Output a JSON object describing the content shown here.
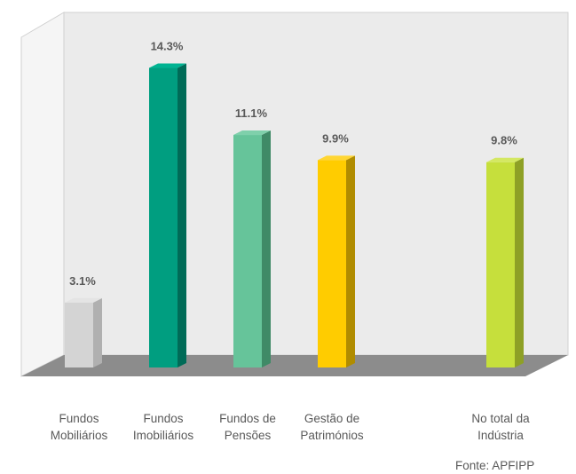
{
  "chart_data": {
    "type": "bar",
    "categories": [
      "Fundos Mobiliários",
      "Fundos Imobiliários",
      "Fundos de Pensões",
      "Gestão de Patrimónios",
      "No total da Indústria"
    ],
    "category_lines": [
      [
        "Fundos",
        "Mobiliários"
      ],
      [
        "Fundos",
        "Imobiliários"
      ],
      [
        "Fundos de",
        "Pensões"
      ],
      [
        "Gestão de",
        "Patrimónios"
      ],
      [
        "No total da",
        "Indústria"
      ]
    ],
    "values": [
      3.1,
      14.3,
      11.1,
      9.9,
      9.8
    ],
    "value_labels": [
      "3.1%",
      "14.3%",
      "11.1%",
      "9.9%",
      "9.8%"
    ],
    "ylim": [
      0,
      15
    ],
    "grid": false,
    "legend": "none",
    "title": "",
    "xlabel": "",
    "ylabel": "",
    "colors": [
      {
        "front": "#d4d4d4",
        "side": "#b0b0b0",
        "top": "#e4e4e4"
      },
      {
        "front": "#009e80",
        "side": "#006b57",
        "top": "#00b392"
      },
      {
        "front": "#66c49a",
        "side": "#3f8a67",
        "top": "#7fd0ab"
      },
      {
        "front": "#ffcc00",
        "side": "#b08c00",
        "top": "#ffd633"
      },
      {
        "front": "#c6df3c",
        "side": "#8ea026",
        "top": "#d4e862"
      }
    ]
  },
  "source": "Fonte: APFIPP"
}
